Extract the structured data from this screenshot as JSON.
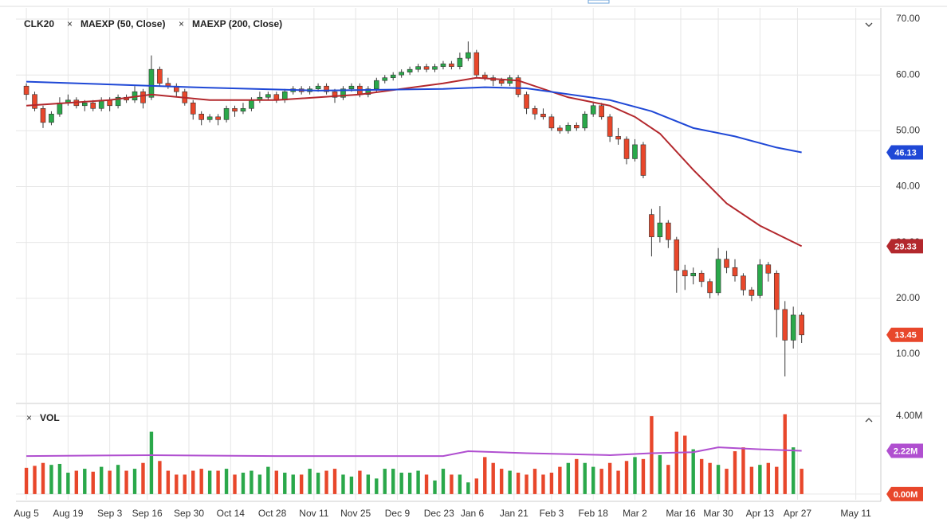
{
  "chart_data": [
    {
      "type": "candlestick",
      "title": "CLK20",
      "x": [
        0,
        2,
        4,
        6,
        8,
        10,
        12,
        14,
        16,
        18,
        20,
        22,
        24,
        26,
        28,
        30,
        32,
        34,
        36,
        38,
        40,
        42,
        44,
        46,
        48,
        50,
        52,
        54,
        56,
        58,
        60,
        62,
        64,
        66,
        68,
        70,
        72,
        74,
        76,
        78,
        80,
        82,
        84,
        86,
        88,
        90,
        92,
        94,
        96,
        98,
        100,
        102,
        104,
        106,
        108,
        110,
        112,
        114,
        116,
        118,
        120,
        122,
        124,
        126,
        128,
        130,
        132,
        134,
        136,
        138,
        140,
        142,
        144,
        146,
        148,
        150,
        152,
        154,
        156,
        158,
        160,
        162,
        164,
        166,
        168,
        170,
        172,
        174,
        176,
        178,
        180,
        182,
        184,
        186
      ],
      "open": [
        58,
        56.5,
        54,
        51.5,
        53,
        55,
        55.5,
        54.5,
        55,
        54,
        55.5,
        54.5,
        56,
        55.5,
        57,
        56,
        61,
        58.5,
        58,
        57,
        55,
        53,
        52,
        52.5,
        52,
        54,
        53.5,
        54,
        55.5,
        56,
        56.5,
        55.5,
        57,
        57.5,
        57,
        57.5,
        58,
        57,
        56,
        57.5,
        58,
        56.5,
        57.5,
        59,
        59.5,
        60,
        60.5,
        61,
        61.5,
        61,
        61.5,
        62,
        61.5,
        63,
        64,
        60,
        59.5,
        59,
        58.5,
        59.5,
        56.5,
        54,
        53,
        52.5,
        50.5,
        50,
        51,
        50.5,
        53,
        54.5,
        52.5,
        49,
        48.5,
        45,
        47.5,
        35,
        31,
        33.5,
        30.5,
        25,
        24,
        24.5,
        23,
        21,
        27,
        25.5,
        24,
        21.5,
        20.5,
        26,
        24.5,
        18,
        12.5,
        17
      ],
      "high": [
        58.5,
        57,
        54.5,
        53.5,
        56,
        56.5,
        56,
        55.5,
        55.5,
        56,
        56,
        56.5,
        56.5,
        58,
        57.5,
        63.5,
        61.5,
        59.5,
        58.5,
        57.5,
        55.5,
        53.5,
        53,
        53,
        54.5,
        54.5,
        55,
        56,
        57,
        57,
        57,
        57.5,
        58,
        58,
        58,
        58.5,
        58.5,
        57.5,
        58,
        58.5,
        58.5,
        58,
        59.5,
        60,
        60.5,
        61,
        61.5,
        62,
        62,
        62,
        62.5,
        62.5,
        64,
        66,
        64.5,
        60.5,
        60,
        59.5,
        60,
        60,
        57,
        54.5,
        54,
        53,
        51,
        51.5,
        51.5,
        53.5,
        55,
        55,
        53,
        50.5,
        49,
        48.5,
        48,
        36,
        36.5,
        34,
        31,
        26,
        25.5,
        25,
        23.5,
        29,
        28.5,
        27,
        24.5,
        22,
        27,
        26.5,
        25,
        19.5,
        18.5,
        17.5
      ],
      "low": [
        55.5,
        53.5,
        50.5,
        51,
        52.5,
        54.5,
        54,
        53.5,
        53.5,
        53.5,
        53.5,
        54,
        55,
        55,
        54,
        55.5,
        58,
        57.5,
        56,
        54.5,
        52,
        51,
        51.5,
        51,
        51.5,
        52.5,
        53,
        53.5,
        55,
        55.5,
        55,
        55,
        56.5,
        56.5,
        56.5,
        57,
        56.5,
        55,
        55.5,
        57,
        56,
        56,
        57,
        58.5,
        59,
        59.5,
        60,
        60.5,
        60.5,
        60.5,
        61,
        61,
        61,
        62.5,
        59.5,
        59,
        58,
        58,
        58,
        56,
        53,
        52,
        52,
        50,
        49.5,
        49.5,
        50,
        50,
        52.5,
        52,
        48,
        47.5,
        44,
        44.5,
        41.5,
        27.5,
        30,
        29,
        21,
        21.5,
        22.5,
        22,
        20,
        20.5,
        24.5,
        23,
        20.5,
        19.5,
        20,
        23,
        13,
        6,
        11,
        12
      ],
      "close": [
        56.5,
        54,
        51.5,
        53,
        55,
        55.5,
        54.5,
        55,
        54,
        55.5,
        54.5,
        56,
        55.5,
        57,
        55,
        61,
        58.5,
        58,
        57,
        55,
        53,
        52,
        52.5,
        52,
        54,
        53.5,
        54,
        55.5,
        56,
        56.5,
        55.5,
        57,
        57.5,
        57,
        57.5,
        58,
        57,
        56,
        57.5,
        58,
        56.5,
        57.5,
        59,
        59.5,
        60,
        60.5,
        61,
        61.5,
        61,
        61.5,
        62,
        61.5,
        63,
        64,
        60,
        59.5,
        59,
        58.5,
        59.5,
        56.5,
        54,
        53,
        52.5,
        50.5,
        50,
        51,
        50.5,
        53,
        54.5,
        52.5,
        49,
        48.5,
        45,
        47.5,
        42,
        31,
        33.5,
        30.5,
        25,
        24,
        24.5,
        23,
        21,
        27,
        25.5,
        24,
        21.5,
        20.5,
        26,
        24.5,
        18,
        12.5,
        17,
        13.45
      ],
      "up_color": "#2aa84a",
      "down_color": "#e8472b",
      "overlays": [
        {
          "name": "MAEXP (50, Close)",
          "color": "#b3282d",
          "x": [
            0,
            20,
            30,
            44,
            60,
            80,
            100,
            108,
            118,
            130,
            140,
            146,
            152,
            160,
            168,
            176,
            186
          ],
          "values": [
            54.5,
            55.5,
            56.5,
            55.5,
            55.5,
            56.5,
            58.5,
            59.5,
            59,
            56,
            54.5,
            52.5,
            49.5,
            43,
            37,
            33,
            29.33
          ]
        },
        {
          "name": "MAEXP (200, Close)",
          "color": "#1f48d6",
          "x": [
            0,
            40,
            70,
            100,
            110,
            120,
            140,
            150,
            160,
            170,
            180,
            186
          ],
          "values": [
            58.8,
            57.8,
            57.2,
            57.5,
            57.8,
            57.6,
            55.5,
            53.5,
            50.5,
            49,
            47,
            46.13
          ]
        }
      ],
      "xlim": [
        -2.5,
        205
      ],
      "xticks": [
        {
          "value": 0,
          "label": "Aug 5"
        },
        {
          "value": 10,
          "label": "Aug 19"
        },
        {
          "value": 20,
          "label": "Sep 3"
        },
        {
          "value": 29,
          "label": "Sep 16"
        },
        {
          "value": 39,
          "label": "Sep 30"
        },
        {
          "value": 49,
          "label": "Oct 14"
        },
        {
          "value": 59,
          "label": "Oct 28"
        },
        {
          "value": 69,
          "label": "Nov 11"
        },
        {
          "value": 79,
          "label": "Nov 25"
        },
        {
          "value": 89,
          "label": "Dec 9"
        },
        {
          "value": 99,
          "label": "Dec 23"
        },
        {
          "value": 107,
          "label": "Jan 6"
        },
        {
          "value": 117,
          "label": "Jan 21"
        },
        {
          "value": 126,
          "label": "Feb 3"
        },
        {
          "value": 136,
          "label": "Feb 18"
        },
        {
          "value": 146,
          "label": "Mar 2"
        },
        {
          "value": 157,
          "label": "Mar 16"
        },
        {
          "value": 166,
          "label": "Mar 30"
        },
        {
          "value": 176,
          "label": "Apr 13"
        },
        {
          "value": 185,
          "label": "Apr 27"
        },
        {
          "value": 199,
          "label": "May 11"
        }
      ],
      "ylim": [
        1.45,
        72
      ],
      "yticks": [
        {
          "value": 10,
          "label": "10.00"
        },
        {
          "value": 20,
          "label": "20.00"
        },
        {
          "value": 30,
          "label": "30.00"
        },
        {
          "value": 40,
          "label": "40.00"
        },
        {
          "value": 50,
          "label": "50.00"
        },
        {
          "value": 60,
          "label": "60.00"
        },
        {
          "value": 70,
          "label": "70.00"
        }
      ],
      "grid": true
    },
    {
      "type": "bar",
      "title": "VOL",
      "x": [
        0,
        2,
        4,
        6,
        8,
        10,
        12,
        14,
        16,
        18,
        20,
        22,
        24,
        26,
        28,
        30,
        32,
        34,
        36,
        38,
        40,
        42,
        44,
        46,
        48,
        50,
        52,
        54,
        56,
        58,
        60,
        62,
        64,
        66,
        68,
        70,
        72,
        74,
        76,
        78,
        80,
        82,
        84,
        86,
        88,
        90,
        92,
        94,
        96,
        98,
        100,
        102,
        104,
        106,
        108,
        110,
        112,
        114,
        116,
        118,
        120,
        122,
        124,
        126,
        128,
        130,
        132,
        134,
        136,
        138,
        140,
        142,
        144,
        146,
        148,
        150,
        152,
        154,
        156,
        158,
        160,
        162,
        164,
        166,
        168,
        170,
        172,
        174,
        176,
        178,
        180,
        182,
        184,
        186
      ],
      "values": [
        1.35,
        1.45,
        1.6,
        1.5,
        1.55,
        1.1,
        1.2,
        1.3,
        1.15,
        1.4,
        1.2,
        1.5,
        1.2,
        1.3,
        1.6,
        3.2,
        1.7,
        1.2,
        1.0,
        1.0,
        1.2,
        1.3,
        1.2,
        1.2,
        1.3,
        1.0,
        1.1,
        1.2,
        1.0,
        1.4,
        1.2,
        1.1,
        1.0,
        1.0,
        1.3,
        1.1,
        1.2,
        1.3,
        1.0,
        0.9,
        1.2,
        1.0,
        0.8,
        1.3,
        1.3,
        1.1,
        1.1,
        1.2,
        1.0,
        0.7,
        1.3,
        1.0,
        1.0,
        0.6,
        0.8,
        1.9,
        1.6,
        1.3,
        1.2,
        1.1,
        1.0,
        1.3,
        1.0,
        1.1,
        1.4,
        1.6,
        1.8,
        1.6,
        1.4,
        1.3,
        1.6,
        1.2,
        1.7,
        1.9,
        1.8,
        4.0,
        2.0,
        1.5,
        3.2,
        3.0,
        2.3,
        1.8,
        1.6,
        1.5,
        1.3,
        2.2,
        2.4,
        1.4,
        1.5,
        1.6,
        1.4,
        4.1,
        2.4,
        1.3
      ],
      "overlay": {
        "color": "#b04fd0",
        "x": [
          0,
          30,
          60,
          100,
          106,
          120,
          140,
          150,
          160,
          166,
          176,
          186
        ],
        "values": [
          1.95,
          2.0,
          1.95,
          1.95,
          2.2,
          2.1,
          2.0,
          2.1,
          2.15,
          2.4,
          2.3,
          2.22
        ],
        "badge": {
          "value": 2.22,
          "label": "2.22M"
        }
      },
      "ylim": [
        -0.29,
        4.53
      ],
      "yticks": [
        {
          "value": 0,
          "label": "0.00M"
        },
        {
          "value": 4,
          "label": "4.00M"
        }
      ]
    }
  ]
}
